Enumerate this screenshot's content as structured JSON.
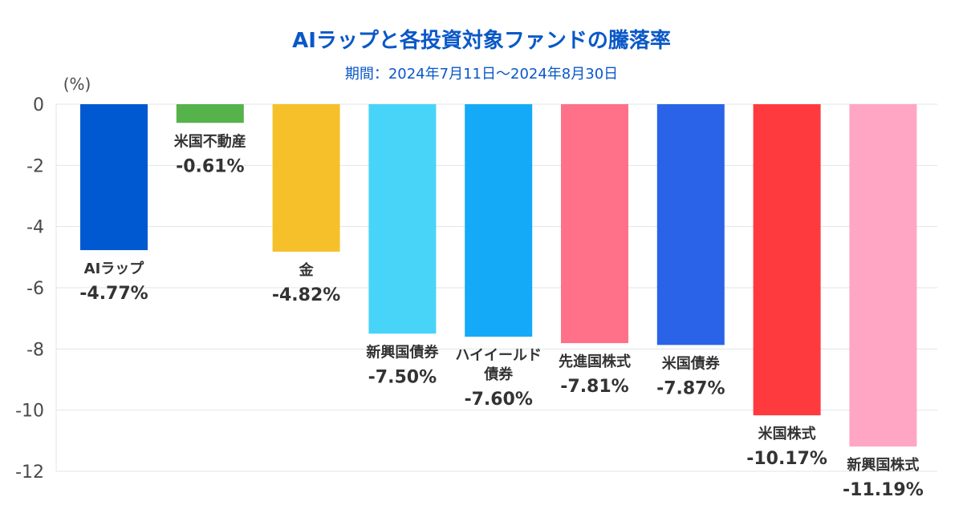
{
  "chart_data": {
    "type": "bar",
    "title": "AIラップと各投資対象ファンドの騰落率",
    "subtitle": "期間：2024年7月11日〜2024年8月30日",
    "ylabel": "(%)",
    "ylim": [
      -12,
      0
    ],
    "yticks": [
      0,
      -2,
      -4,
      -6,
      -8,
      -10,
      -12
    ],
    "grid": true,
    "legend": "none",
    "categories": [
      "AIラップ",
      "米国不動産",
      "金",
      "新興国債券",
      "ハイイールド債券",
      "先進国株式",
      "米国債券",
      "米国株式",
      "新興国株式"
    ],
    "category_lines": [
      [
        "AIラップ"
      ],
      [
        "米国不動産"
      ],
      [
        "金"
      ],
      [
        "新興国債券"
      ],
      [
        "ハイイールド",
        "債券"
      ],
      [
        "先進国株式"
      ],
      [
        "米国債券"
      ],
      [
        "米国株式"
      ],
      [
        "新興国株式"
      ]
    ],
    "values": [
      -4.77,
      -0.61,
      -4.82,
      -7.5,
      -7.6,
      -7.81,
      -7.87,
      -10.17,
      -11.19
    ],
    "value_labels": [
      "-4.77%",
      "-0.61%",
      "-4.82%",
      "-7.50%",
      "-7.60%",
      "-7.81%",
      "-7.87%",
      "-10.17%",
      "-11.19%"
    ],
    "colors": [
      "#0059d1",
      "#56b24a",
      "#f5c02a",
      "#48d4f8",
      "#14aaf7",
      "#ff7089",
      "#2a63e8",
      "#ff3a3e",
      "#ffa6c4"
    ]
  }
}
